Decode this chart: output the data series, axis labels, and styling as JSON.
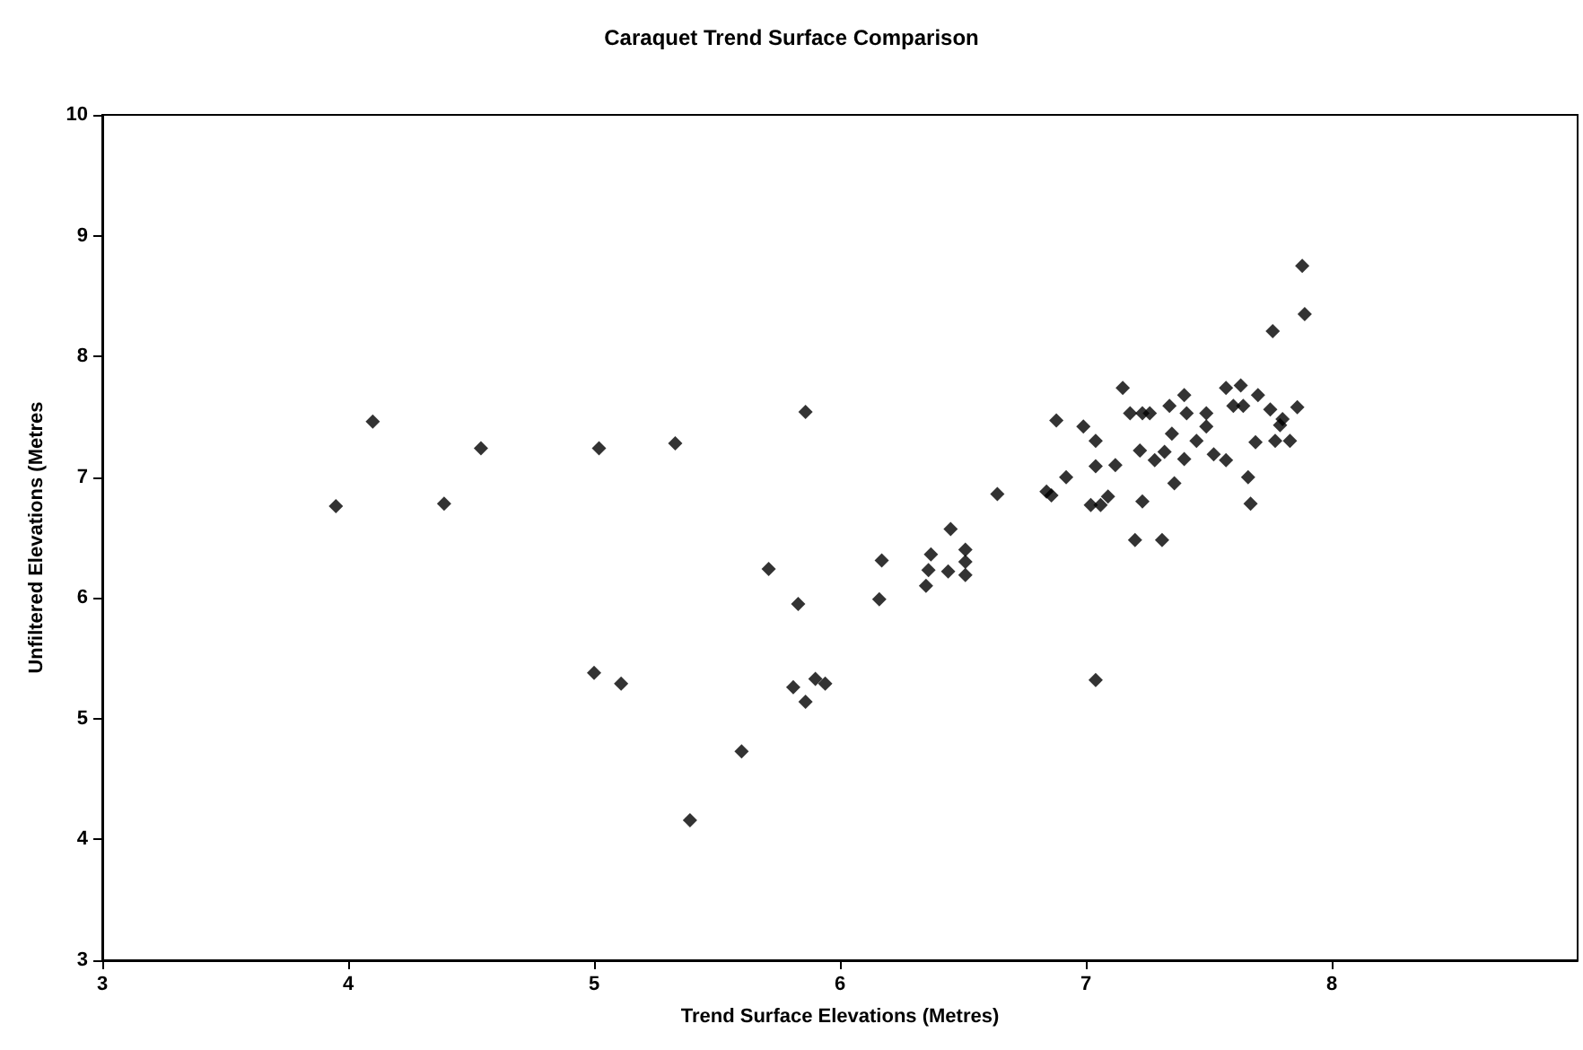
{
  "chart_data": {
    "type": "scatter",
    "title": "Caraquet Trend Surface Comparison",
    "xlabel": "Trend Surface Elevations (Metres)",
    "ylabel": "Unfiltered Elevations (Metres",
    "marker": "diamond",
    "xlim": [
      3,
      9
    ],
    "xticks": [
      3,
      4,
      5,
      6,
      7,
      8
    ],
    "ylim": [
      3,
      10
    ],
    "yticks": [
      3,
      4,
      5,
      6,
      7,
      8,
      9,
      10
    ],
    "series": [
      {
        "color": "#000000",
        "x": [
          4.1,
          4.54,
          5.02,
          5.33,
          5.86,
          3.95,
          4.39,
          5.71,
          6.17,
          6.16,
          5.83,
          5.0,
          5.11,
          5.81,
          5.86,
          5.9,
          5.94,
          5.6,
          5.39,
          6.37,
          6.36,
          6.35,
          6.44,
          6.51,
          6.51,
          6.51,
          6.45,
          7.04,
          7.2,
          7.88,
          7.89,
          7.76,
          7.15,
          7.18,
          7.23,
          7.26,
          7.34,
          7.4,
          7.41,
          7.57,
          7.63,
          7.6,
          7.64,
          7.7,
          7.75,
          7.79,
          7.86,
          7.49,
          7.49,
          6.99,
          7.04,
          7.04,
          7.12,
          7.02,
          7.09,
          7.06,
          7.23,
          7.31,
          7.22,
          7.28,
          7.32,
          7.35,
          7.4,
          7.45,
          7.36,
          7.52,
          7.57,
          7.66,
          7.67,
          7.69,
          7.77,
          7.83,
          7.8,
          6.84,
          6.86,
          6.92,
          6.88,
          6.64
        ],
        "values": [
          7.46,
          7.24,
          7.24,
          7.28,
          7.54,
          6.76,
          6.78,
          6.24,
          6.31,
          5.99,
          5.95,
          5.38,
          5.29,
          5.26,
          5.14,
          5.33,
          5.29,
          4.73,
          4.16,
          6.36,
          6.23,
          6.1,
          6.22,
          6.4,
          6.3,
          6.19,
          6.57,
          5.32,
          6.48,
          8.75,
          8.35,
          8.21,
          7.74,
          7.53,
          7.53,
          7.53,
          7.59,
          7.68,
          7.53,
          7.74,
          7.76,
          7.59,
          7.59,
          7.68,
          7.56,
          7.43,
          7.58,
          7.53,
          7.42,
          7.42,
          7.3,
          7.09,
          7.1,
          6.77,
          6.84,
          6.77,
          6.8,
          6.48,
          7.22,
          7.14,
          7.21,
          7.36,
          7.15,
          7.3,
          6.95,
          7.19,
          7.14,
          7.0,
          6.78,
          7.29,
          7.3,
          7.3,
          7.48,
          6.88,
          6.85,
          7.0,
          7.47,
          6.86
        ]
      }
    ]
  }
}
